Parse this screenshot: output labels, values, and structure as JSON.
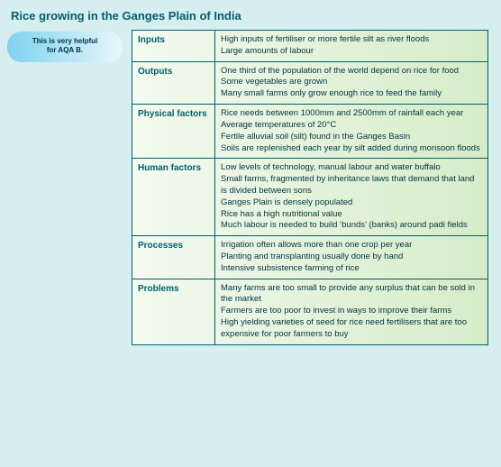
{
  "title": "Rice growing in the Ganges Plain of India",
  "callout": {
    "line1": "This is very helpful",
    "line2": "for AQA B."
  },
  "rows": [
    {
      "header": "Inputs",
      "lines": [
        "High inputs of fertiliser or more fertile silt as river floods",
        "Large amounts of labour"
      ]
    },
    {
      "header": "Outputs",
      "lines": [
        "One third of the population of the world depend on rice for food",
        "Some vegetables are grown",
        "Many small farms only grow enough rice to feed the family"
      ]
    },
    {
      "header": "Physical factors",
      "lines": [
        "Rice needs between 1000mm and 2500mm of rainfall each year",
        "Average temperatures of 20°C",
        "Fertile alluvial soil (silt) found in the Ganges Basin",
        "Soils are replenished each year by silt added during monsoon floods"
      ]
    },
    {
      "header": "Human factors",
      "lines": [
        "Low levels of technology, manual labour and water buffalo",
        "Small farms, fragmented by inheritance laws that demand that land is divided between sons",
        "Ganges Plain is densely populated",
        "Rice has a high nutritional value",
        "Much labour is needed to build  ‘bunds’  (banks) around padi fields"
      ]
    },
    {
      "header": "Processes",
      "lines": [
        "Irrigation often allows more than one crop per year",
        "Planting and transplanting usually done by hand",
        "Intensive subsistence farming of rice"
      ]
    },
    {
      "header": "Problems",
      "lines": [
        "Many farms are too small to provide any surplus that can be sold in the market",
        "Farmers are too poor to invest in ways to improve their farms",
        "High yielding varieties of seed for rice need fertilisers that are too expensive for poor farmers to buy"
      ]
    }
  ]
}
